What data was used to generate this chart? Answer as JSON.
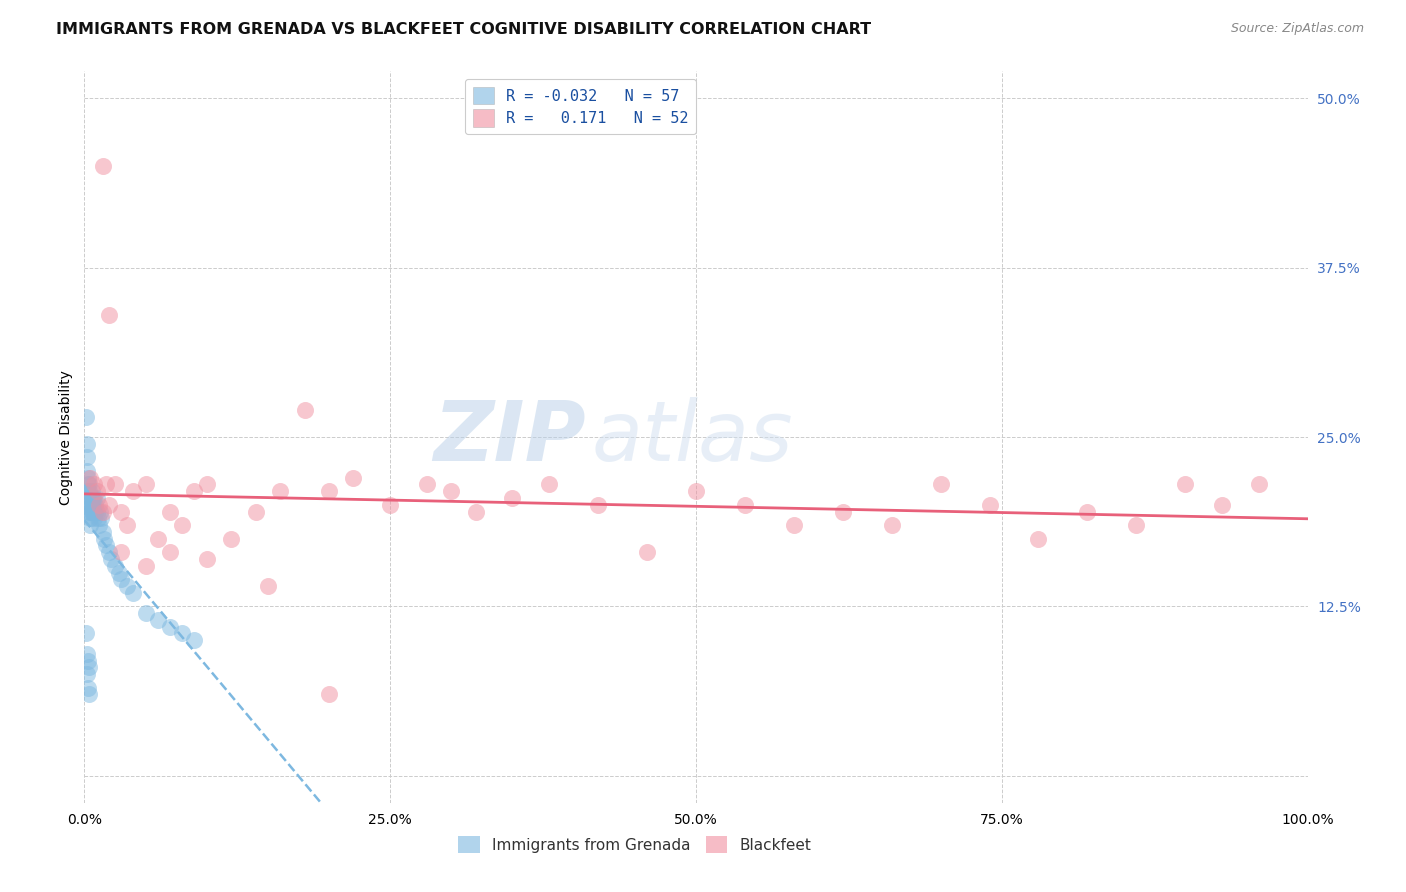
{
  "title": "IMMIGRANTS FROM GRENADA VS BLACKFEET COGNITIVE DISABILITY CORRELATION CHART",
  "source": "Source: ZipAtlas.com",
  "ylabel": "Cognitive Disability",
  "xlim": [
    0.0,
    1.0
  ],
  "ylim": [
    -0.02,
    0.52
  ],
  "xticks": [
    0.0,
    0.25,
    0.5,
    0.75,
    1.0
  ],
  "xticklabels": [
    "0.0%",
    "25.0%",
    "50.0%",
    "75.0%",
    "100.0%"
  ],
  "yticks_right": [
    0.0,
    0.125,
    0.25,
    0.375,
    0.5
  ],
  "yticklabels_right": [
    "",
    "12.5%",
    "25.0%",
    "37.5%",
    "50.0%"
  ],
  "legend_r1": "R = -0.032",
  "legend_n1": "N = 57",
  "legend_r2": "R =   0.171",
  "legend_n2": "N = 52",
  "series1_label": "Immigrants from Grenada",
  "series2_label": "Blackfeet",
  "series1_color": "#7db8e0",
  "series2_color": "#f090a0",
  "series1_line_color": "#7db8e0",
  "series2_line_color": "#e8607a",
  "background_color": "#ffffff",
  "grid_color": "#cccccc",
  "watermark_zip": "ZIP",
  "watermark_atlas": "atlas",
  "title_fontsize": 11.5,
  "axis_label_fontsize": 10,
  "tick_fontsize": 10,
  "right_tick_color": "#4472c4",
  "series1_x": [
    0.001,
    0.002,
    0.002,
    0.002,
    0.003,
    0.003,
    0.003,
    0.003,
    0.004,
    0.004,
    0.004,
    0.004,
    0.005,
    0.005,
    0.005,
    0.005,
    0.005,
    0.006,
    0.006,
    0.006,
    0.006,
    0.007,
    0.007,
    0.007,
    0.008,
    0.008,
    0.008,
    0.009,
    0.009,
    0.01,
    0.01,
    0.011,
    0.012,
    0.013,
    0.014,
    0.015,
    0.016,
    0.018,
    0.02,
    0.022,
    0.025,
    0.028,
    0.03,
    0.035,
    0.04,
    0.05,
    0.06,
    0.07,
    0.08,
    0.09,
    0.001,
    0.002,
    0.003,
    0.004,
    0.002,
    0.003,
    0.004
  ],
  "series1_y": [
    0.265,
    0.245,
    0.235,
    0.225,
    0.22,
    0.215,
    0.21,
    0.205,
    0.2,
    0.195,
    0.215,
    0.21,
    0.205,
    0.2,
    0.195,
    0.19,
    0.185,
    0.21,
    0.205,
    0.2,
    0.195,
    0.205,
    0.2,
    0.195,
    0.205,
    0.195,
    0.19,
    0.2,
    0.195,
    0.205,
    0.195,
    0.19,
    0.185,
    0.195,
    0.19,
    0.18,
    0.175,
    0.17,
    0.165,
    0.16,
    0.155,
    0.15,
    0.145,
    0.14,
    0.135,
    0.12,
    0.115,
    0.11,
    0.105,
    0.1,
    0.105,
    0.09,
    0.085,
    0.08,
    0.075,
    0.065,
    0.06
  ],
  "series2_x": [
    0.005,
    0.008,
    0.01,
    0.012,
    0.015,
    0.018,
    0.02,
    0.025,
    0.03,
    0.035,
    0.04,
    0.05,
    0.06,
    0.07,
    0.08,
    0.09,
    0.1,
    0.12,
    0.14,
    0.16,
    0.18,
    0.2,
    0.22,
    0.25,
    0.28,
    0.3,
    0.32,
    0.35,
    0.38,
    0.42,
    0.46,
    0.5,
    0.54,
    0.58,
    0.62,
    0.66,
    0.7,
    0.74,
    0.78,
    0.82,
    0.86,
    0.9,
    0.93,
    0.96,
    0.015,
    0.02,
    0.03,
    0.05,
    0.07,
    0.1,
    0.15,
    0.2
  ],
  "series2_y": [
    0.22,
    0.215,
    0.21,
    0.2,
    0.195,
    0.215,
    0.2,
    0.215,
    0.195,
    0.185,
    0.21,
    0.215,
    0.175,
    0.195,
    0.185,
    0.21,
    0.215,
    0.175,
    0.195,
    0.21,
    0.27,
    0.21,
    0.22,
    0.2,
    0.215,
    0.21,
    0.195,
    0.205,
    0.215,
    0.2,
    0.165,
    0.21,
    0.2,
    0.185,
    0.195,
    0.185,
    0.215,
    0.2,
    0.175,
    0.195,
    0.185,
    0.215,
    0.2,
    0.215,
    0.45,
    0.34,
    0.165,
    0.155,
    0.165,
    0.16,
    0.14,
    0.06
  ]
}
